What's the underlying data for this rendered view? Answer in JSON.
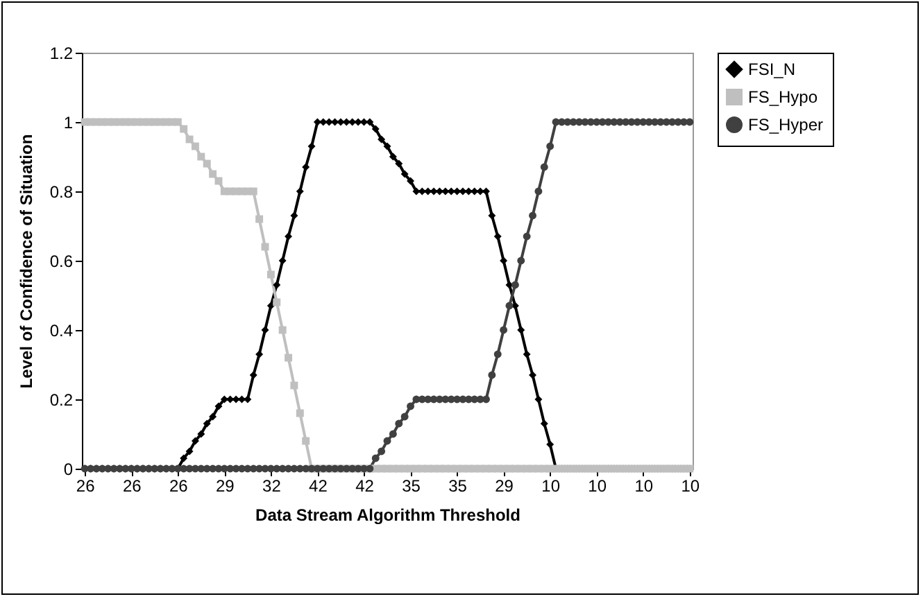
{
  "chart_data": {
    "type": "line",
    "xlabel": "Data Stream Algorithm Threshold",
    "ylabel": "Level of Confidence of Situation",
    "categories": [
      "26",
      null,
      null,
      null,
      null,
      null,
      null,
      null,
      "26",
      null,
      null,
      null,
      null,
      null,
      null,
      null,
      "26",
      null,
      null,
      null,
      null,
      null,
      null,
      null,
      "29",
      null,
      null,
      null,
      null,
      null,
      null,
      null,
      "32",
      null,
      null,
      null,
      null,
      null,
      null,
      null,
      "42",
      null,
      null,
      null,
      null,
      null,
      null,
      null,
      "42",
      null,
      null,
      null,
      null,
      null,
      null,
      null,
      "35",
      null,
      null,
      null,
      null,
      null,
      null,
      null,
      "35",
      null,
      null,
      null,
      null,
      null,
      null,
      null,
      "29",
      null,
      null,
      null,
      null,
      null,
      null,
      null,
      "10",
      null,
      null,
      null,
      null,
      null,
      null,
      null,
      "10",
      null,
      null,
      null,
      null,
      null,
      null,
      null,
      "10",
      null,
      null,
      null,
      null,
      null,
      null,
      null,
      "10"
    ],
    "series": [
      {
        "name": "FSI_N",
        "color": "#000000",
        "marker": "diamond",
        "values": [
          0,
          0,
          0,
          0,
          0,
          0,
          0,
          0,
          0,
          0,
          0,
          0,
          0,
          0,
          0,
          0,
          0,
          0.03,
          0.05,
          0.08,
          0.1,
          0.13,
          0.15,
          0.18,
          0.2,
          0.2,
          0.2,
          0.2,
          0.2,
          0.27,
          0.33,
          0.4,
          0.47,
          0.53,
          0.6,
          0.67,
          0.73,
          0.8,
          0.87,
          0.93,
          1,
          1,
          1,
          1,
          1,
          1,
          1,
          1,
          1,
          1,
          0.98,
          0.95,
          0.93,
          0.9,
          0.88,
          0.85,
          0.83,
          0.8,
          0.8,
          0.8,
          0.8,
          0.8,
          0.8,
          0.8,
          0.8,
          0.8,
          0.8,
          0.8,
          0.8,
          0.8,
          0.73,
          0.67,
          0.6,
          0.53,
          0.47,
          0.4,
          0.33,
          0.27,
          0.2,
          0.13,
          0.07,
          0,
          0,
          0,
          0,
          0,
          0,
          0,
          0,
          0,
          0,
          0,
          0,
          0,
          0,
          0,
          0,
          0,
          0,
          0,
          0,
          0,
          0,
          0,
          0
        ]
      },
      {
        "name": "FS_Hypo",
        "color": "#bfbfbf",
        "marker": "square",
        "values": [
          1,
          1,
          1,
          1,
          1,
          1,
          1,
          1,
          1,
          1,
          1,
          1,
          1,
          1,
          1,
          1,
          1,
          0.98,
          0.95,
          0.93,
          0.9,
          0.88,
          0.85,
          0.83,
          0.8,
          0.8,
          0.8,
          0.8,
          0.8,
          0.8,
          0.72,
          0.64,
          0.56,
          0.48,
          0.4,
          0.32,
          0.24,
          0.16,
          0.08,
          0,
          0,
          0,
          0,
          0,
          0,
          0,
          0,
          0,
          0,
          0,
          0,
          0,
          0,
          0,
          0,
          0,
          0,
          0,
          0,
          0,
          0,
          0,
          0,
          0,
          0,
          0,
          0,
          0,
          0,
          0,
          0,
          0,
          0,
          0,
          0,
          0,
          0,
          0,
          0,
          0,
          0,
          0,
          0,
          0,
          0,
          0,
          0,
          0,
          0,
          0,
          0,
          0,
          0,
          0,
          0,
          0,
          0,
          0,
          0,
          0,
          0,
          0,
          0,
          0,
          0
        ]
      },
      {
        "name": "FS_Hyper",
        "color": "#404040",
        "marker": "circle",
        "values": [
          0,
          0,
          0,
          0,
          0,
          0,
          0,
          0,
          0,
          0,
          0,
          0,
          0,
          0,
          0,
          0,
          0,
          0,
          0,
          0,
          0,
          0,
          0,
          0,
          0,
          0,
          0,
          0,
          0,
          0,
          0,
          0,
          0,
          0,
          0,
          0,
          0,
          0,
          0,
          0,
          0,
          0,
          0,
          0,
          0,
          0,
          0,
          0,
          0,
          0,
          0.03,
          0.05,
          0.08,
          0.1,
          0.13,
          0.15,
          0.18,
          0.2,
          0.2,
          0.2,
          0.2,
          0.2,
          0.2,
          0.2,
          0.2,
          0.2,
          0.2,
          0.2,
          0.2,
          0.2,
          0.27,
          0.33,
          0.4,
          0.47,
          0.53,
          0.6,
          0.67,
          0.73,
          0.8,
          0.87,
          0.93,
          1,
          1,
          1,
          1,
          1,
          1,
          1,
          1,
          1,
          1,
          1,
          1,
          1,
          1,
          1,
          1,
          1,
          1,
          1,
          1,
          1,
          1,
          1,
          1
        ]
      }
    ],
    "ylim": [
      0,
      1.2
    ],
    "yticks": [
      0,
      0.2,
      0.4,
      0.6,
      0.8,
      1,
      1.2
    ],
    "grid": false,
    "legend": "right"
  }
}
